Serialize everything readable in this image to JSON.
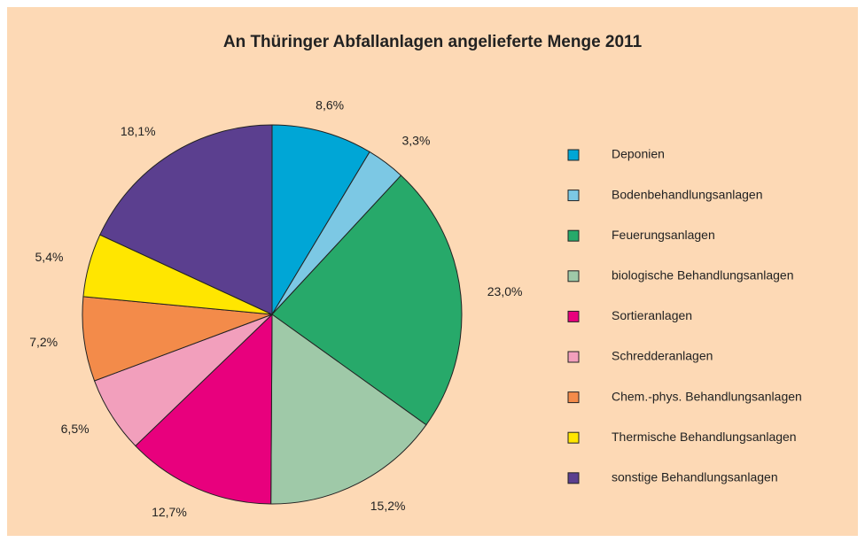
{
  "chart_data": {
    "type": "pie",
    "title": "An Thüringer Abfallanlagen angelieferte Menge 2011",
    "categories": [
      "Deponien",
      "Bodenbehandlungsanlagen",
      "Feuerungsanlagen",
      "biologische Behandlungsanlagen",
      "Sortieranlagen",
      "Schredderanlagen",
      "Chem.-phys. Behandlungsanlagen",
      "Thermische Behandlungsanlagen",
      "sonstige Behandlungsanlagen"
    ],
    "values": [
      8.6,
      3.3,
      23.0,
      15.2,
      12.7,
      6.5,
      7.2,
      5.4,
      18.1
    ],
    "value_labels": [
      "8,6%",
      "3,3%",
      "23,0%",
      "15,2%",
      "12,7%",
      "6,5%",
      "7,2%",
      "5,4%",
      "18,1%"
    ],
    "colors": [
      "#00a6d6",
      "#7cc8e4",
      "#27a96a",
      "#9fc9a8",
      "#e8007d",
      "#f29fbc",
      "#f38b4a",
      "#ffe600",
      "#5b3f8f"
    ],
    "legend": "right"
  }
}
